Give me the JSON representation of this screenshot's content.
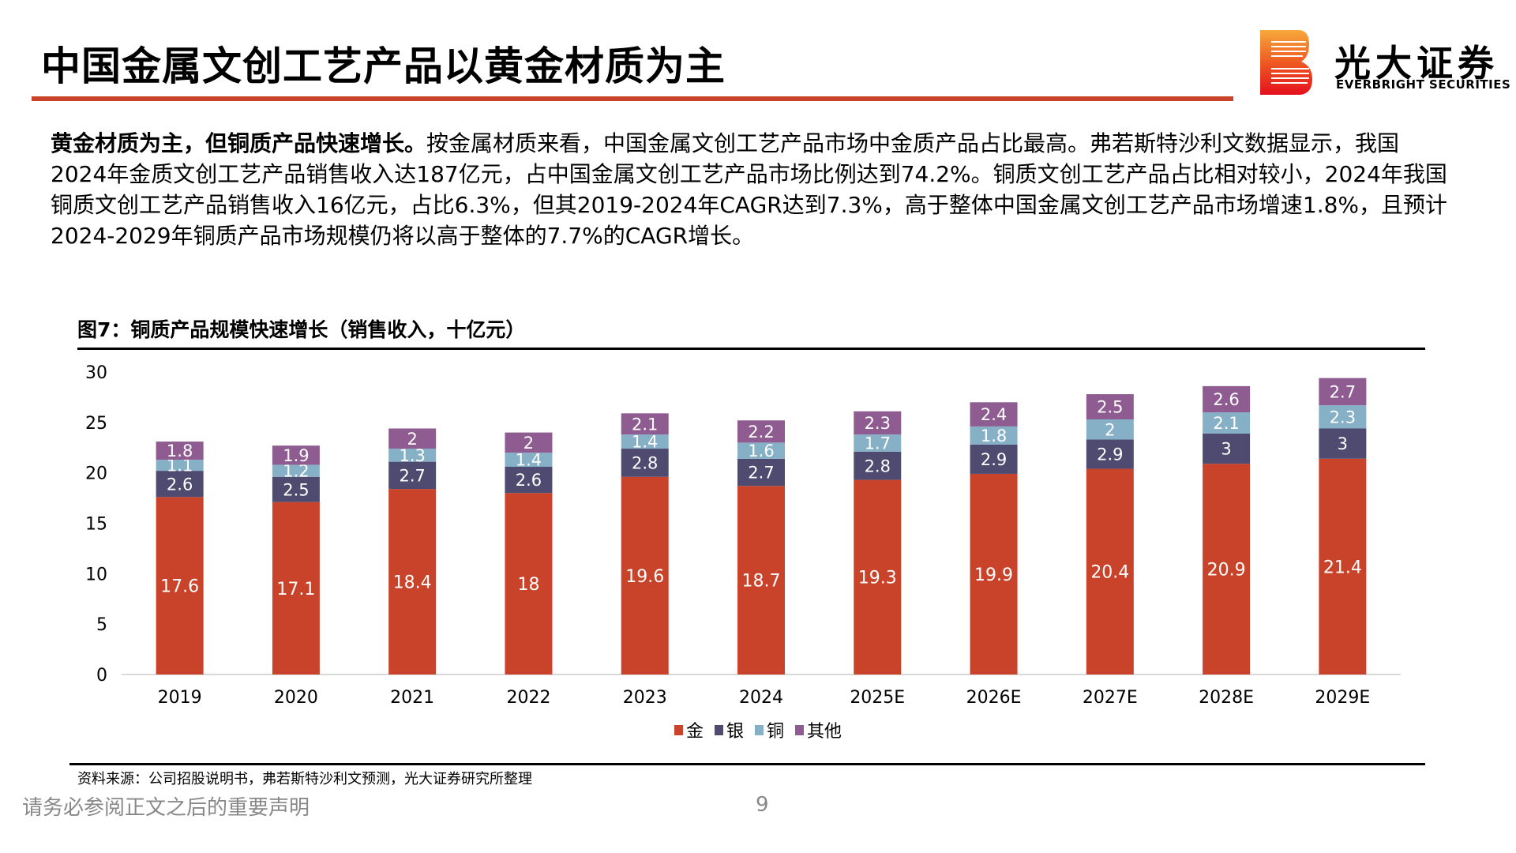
{
  "header": {
    "title": "中国金属文创工艺产品以黄金材质为主",
    "logo_cn": "光大证券",
    "logo_en": "EVERBRIGHT SECURITIES"
  },
  "body": {
    "lead": "黄金材质为主，但铜质产品快速增长。",
    "text": "按金属材质来看，中国金属文创工艺产品市场中金质产品占比最高。弗若斯特沙利文数据显示，我国2024年金质文创工艺产品销售收入达187亿元，占中国金属文创工艺产品市场比例达到74.2%。铜质文创工艺产品占比相对较小，2024年我国铜质文创工艺产品销售收入16亿元，占比6.3%，但其2019-2024年CAGR达到7.3%，高于整体中国金属文创工艺产品市场增速1.8%，且预计2024-2029年铜质产品市场规模仍将以高于整体的7.7%的CAGR增长。"
  },
  "chart_data": {
    "type": "bar",
    "stacked": true,
    "title": "图7：铜质产品规模快速增长（销售收入，十亿元）",
    "categories": [
      "2019",
      "2020",
      "2021",
      "2022",
      "2023",
      "2024",
      "2025E",
      "2026E",
      "2027E",
      "2028E",
      "2029E"
    ],
    "series": [
      {
        "name": "金",
        "color": "#C8432A",
        "values": [
          17.6,
          17.1,
          18.4,
          18,
          19.6,
          18.7,
          19.3,
          19.9,
          20.4,
          20.9,
          21.4
        ]
      },
      {
        "name": "银",
        "color": "#4F4A70",
        "values": [
          2.6,
          2.5,
          2.7,
          2.6,
          2.8,
          2.7,
          2.8,
          2.9,
          2.9,
          3,
          3
        ]
      },
      {
        "name": "铜",
        "color": "#86B0C6",
        "values": [
          1.1,
          1.2,
          1.3,
          1.4,
          1.4,
          1.6,
          1.7,
          1.8,
          2,
          2.1,
          2.3
        ]
      },
      {
        "name": "其他",
        "color": "#8E5C91",
        "values": [
          1.8,
          1.9,
          2,
          2,
          2.1,
          2.2,
          2.3,
          2.4,
          2.5,
          2.6,
          2.7
        ]
      }
    ],
    "ylim": [
      0,
      30
    ],
    "yticks": [
      0,
      5,
      10,
      15,
      20,
      25,
      30
    ],
    "grid": false,
    "legend": "bottom"
  },
  "footer": {
    "source": "资料来源：公司招股说明书，弗若斯特沙利文预测，光大证券研究所整理",
    "disclaimer": "请务必参阅正文之后的重要声明",
    "page": "9"
  }
}
